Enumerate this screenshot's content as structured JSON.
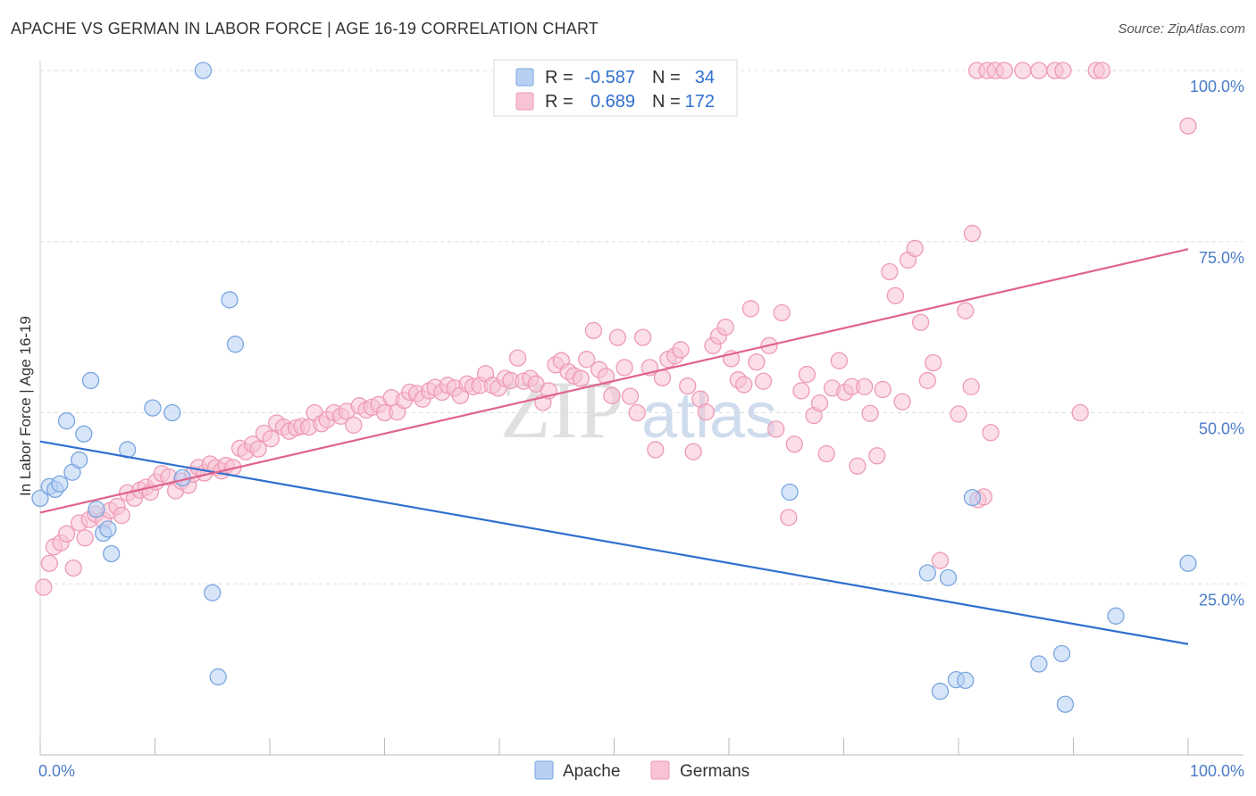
{
  "title": "APACHE VS GERMAN IN LABOR FORCE | AGE 16-19 CORRELATION CHART",
  "source": "Source: ZipAtlas.com",
  "watermark": {
    "zip": "ZIP",
    "atlas": "atlas"
  },
  "colors": {
    "apache_fill": "#b7d0f2",
    "apache_stroke": "#7aa6e0",
    "apache_line": "#2f6fcf",
    "german_fill": "#f8c3d4",
    "german_stroke": "#ee9ab5",
    "german_line": "#e0628e",
    "label_blue": "#4a7cc9",
    "grid": "#dddddd"
  },
  "legend": {
    "apache": {
      "r_label": "R =",
      "r_value": "-0.587",
      "n_label": "N =",
      "n_value": "34"
    },
    "german": {
      "r_label": "R =",
      "r_value": "0.689",
      "n_label": "N =",
      "n_value": "172"
    }
  },
  "bottom_legend": [
    "Apache",
    "Germans"
  ],
  "chart_data": {
    "type": "scatter",
    "title": "APACHE VS GERMAN IN LABOR FORCE | AGE 16-19 CORRELATION CHART",
    "xlabel": "",
    "ylabel": "In Labor Force | Age 16-19",
    "xlim": [
      0,
      100
    ],
    "ylim": [
      0,
      100
    ],
    "x_tick_labels": [
      "0.0%",
      "100.0%"
    ],
    "y_ticks": [
      25,
      50,
      75,
      100
    ],
    "y_tick_labels": [
      "25.0%",
      "50.0%",
      "75.0%",
      "100.0%"
    ],
    "grid": true,
    "series": [
      {
        "name": "Apache",
        "r": -0.587,
        "n": 34,
        "trend": {
          "x": [
            0,
            100
          ],
          "y": [
            45.8,
            16.2
          ]
        },
        "points": [
          [
            0,
            37.5
          ],
          [
            0.8,
            39.2
          ],
          [
            1.3,
            38.8
          ],
          [
            1.7,
            39.6
          ],
          [
            2.3,
            48.8
          ],
          [
            2.8,
            41.3
          ],
          [
            3.4,
            43.1
          ],
          [
            3.8,
            46.9
          ],
          [
            4.4,
            54.7
          ],
          [
            4.9,
            35.9
          ],
          [
            5.5,
            32.4
          ],
          [
            5.9,
            33.0
          ],
          [
            6.2,
            29.4
          ],
          [
            7.6,
            44.6
          ],
          [
            9.8,
            50.7
          ],
          [
            11.5,
            50.0
          ],
          [
            12.4,
            40.5
          ],
          [
            14.2,
            100
          ],
          [
            15.0,
            23.7
          ],
          [
            15.5,
            11.4
          ],
          [
            16.5,
            66.5
          ],
          [
            17.0,
            60.0
          ],
          [
            65.3,
            38.4
          ],
          [
            77.3,
            26.6
          ],
          [
            78.4,
            9.3
          ],
          [
            79.1,
            25.9
          ],
          [
            79.8,
            11.0
          ],
          [
            80.6,
            10.9
          ],
          [
            81.2,
            37.6
          ],
          [
            87.0,
            13.3
          ],
          [
            89.0,
            14.8
          ],
          [
            89.3,
            7.4
          ],
          [
            93.7,
            20.3
          ],
          [
            100.0,
            28.0
          ]
        ]
      },
      {
        "name": "Germans",
        "r": 0.689,
        "n": 172,
        "trend": {
          "x": [
            0,
            100
          ],
          "y": [
            35.4,
            73.9
          ]
        },
        "points": [
          [
            0.3,
            24.5
          ],
          [
            0.8,
            28.0
          ],
          [
            1.2,
            30.4
          ],
          [
            1.8,
            31.0
          ],
          [
            2.3,
            32.3
          ],
          [
            2.9,
            27.3
          ],
          [
            3.4,
            33.9
          ],
          [
            3.9,
            31.7
          ],
          [
            4.3,
            34.4
          ],
          [
            4.8,
            35.2
          ],
          [
            5.5,
            34.3
          ],
          [
            6.1,
            35.7
          ],
          [
            6.7,
            36.3
          ],
          [
            7.1,
            35.0
          ],
          [
            7.6,
            38.3
          ],
          [
            8.2,
            37.5
          ],
          [
            8.7,
            38.7
          ],
          [
            9.2,
            39.1
          ],
          [
            9.6,
            38.4
          ],
          [
            10.1,
            39.9
          ],
          [
            10.6,
            41.1
          ],
          [
            11.2,
            40.6
          ],
          [
            11.8,
            38.6
          ],
          [
            12.3,
            40.0
          ],
          [
            12.9,
            39.4
          ],
          [
            13.3,
            41.0
          ],
          [
            13.8,
            42.0
          ],
          [
            14.3,
            41.2
          ],
          [
            14.8,
            42.5
          ],
          [
            15.3,
            42.0
          ],
          [
            15.8,
            41.5
          ],
          [
            16.2,
            42.3
          ],
          [
            16.8,
            42.0
          ],
          [
            17.4,
            44.8
          ],
          [
            17.9,
            44.3
          ],
          [
            18.5,
            45.4
          ],
          [
            19.0,
            44.7
          ],
          [
            19.5,
            47.0
          ],
          [
            20.1,
            46.2
          ],
          [
            20.6,
            48.5
          ],
          [
            21.2,
            47.9
          ],
          [
            21.7,
            47.3
          ],
          [
            22.3,
            47.8
          ],
          [
            22.8,
            48.0
          ],
          [
            23.4,
            47.9
          ],
          [
            23.9,
            50.0
          ],
          [
            24.5,
            48.4
          ],
          [
            25.0,
            49.0
          ],
          [
            25.6,
            50.0
          ],
          [
            26.2,
            49.5
          ],
          [
            26.7,
            50.2
          ],
          [
            27.3,
            48.2
          ],
          [
            27.8,
            51.0
          ],
          [
            28.4,
            50.4
          ],
          [
            28.9,
            50.8
          ],
          [
            29.5,
            51.2
          ],
          [
            30.0,
            50.0
          ],
          [
            30.6,
            52.2
          ],
          [
            31.1,
            50.1
          ],
          [
            31.7,
            51.8
          ],
          [
            32.2,
            53.0
          ],
          [
            32.8,
            52.8
          ],
          [
            33.3,
            52.0
          ],
          [
            33.9,
            53.2
          ],
          [
            34.4,
            53.7
          ],
          [
            35.0,
            53.0
          ],
          [
            35.5,
            54.0
          ],
          [
            36.1,
            53.6
          ],
          [
            36.6,
            52.5
          ],
          [
            37.2,
            54.2
          ],
          [
            37.7,
            53.8
          ],
          [
            38.3,
            54.0
          ],
          [
            38.8,
            55.7
          ],
          [
            39.4,
            54.0
          ],
          [
            39.9,
            53.6
          ],
          [
            40.5,
            55.0
          ],
          [
            41.0,
            54.7
          ],
          [
            41.6,
            58.0
          ],
          [
            42.1,
            54.6
          ],
          [
            42.7,
            55.0
          ],
          [
            43.2,
            54.2
          ],
          [
            43.8,
            51.5
          ],
          [
            44.3,
            53.2
          ],
          [
            44.9,
            57.0
          ],
          [
            45.4,
            57.6
          ],
          [
            46.0,
            56.0
          ],
          [
            46.5,
            55.4
          ],
          [
            47.1,
            55.0
          ],
          [
            47.6,
            57.8
          ],
          [
            48.2,
            62.0
          ],
          [
            48.7,
            56.3
          ],
          [
            49.3,
            55.3
          ],
          [
            49.8,
            52.5
          ],
          [
            50.3,
            61.0
          ],
          [
            50.9,
            56.6
          ],
          [
            51.4,
            52.4
          ],
          [
            52.0,
            50.0
          ],
          [
            52.5,
            61.0
          ],
          [
            53.1,
            56.6
          ],
          [
            53.6,
            44.6
          ],
          [
            54.2,
            55.1
          ],
          [
            54.7,
            57.8
          ],
          [
            55.3,
            58.3
          ],
          [
            55.8,
            59.2
          ],
          [
            56.4,
            53.9
          ],
          [
            56.9,
            44.3
          ],
          [
            57.5,
            52.0
          ],
          [
            58.0,
            50.1
          ],
          [
            58.6,
            59.8
          ],
          [
            59.1,
            61.2
          ],
          [
            59.7,
            62.5
          ],
          [
            60.2,
            57.9
          ],
          [
            60.8,
            54.8
          ],
          [
            61.3,
            54.1
          ],
          [
            61.9,
            65.2
          ],
          [
            62.4,
            57.4
          ],
          [
            63.0,
            54.6
          ],
          [
            63.5,
            59.8
          ],
          [
            64.1,
            47.6
          ],
          [
            64.6,
            64.6
          ],
          [
            65.2,
            34.7
          ],
          [
            65.7,
            45.4
          ],
          [
            66.3,
            53.2
          ],
          [
            66.8,
            55.6
          ],
          [
            67.4,
            49.6
          ],
          [
            67.9,
            51.4
          ],
          [
            68.5,
            44.0
          ],
          [
            69.0,
            53.6
          ],
          [
            69.6,
            57.6
          ],
          [
            70.1,
            53.0
          ],
          [
            70.7,
            53.8
          ],
          [
            71.2,
            42.2
          ],
          [
            71.8,
            53.8
          ],
          [
            72.3,
            49.9
          ],
          [
            72.9,
            43.7
          ],
          [
            73.4,
            53.4
          ],
          [
            74.0,
            70.6
          ],
          [
            74.5,
            67.1
          ],
          [
            75.1,
            51.6
          ],
          [
            75.6,
            72.3
          ],
          [
            76.2,
            74.0
          ],
          [
            76.7,
            63.2
          ],
          [
            77.3,
            54.7
          ],
          [
            77.8,
            57.3
          ],
          [
            78.4,
            28.4
          ],
          [
            80.0,
            49.8
          ],
          [
            80.6,
            64.9
          ],
          [
            81.1,
            53.8
          ],
          [
            81.7,
            37.3
          ],
          [
            82.2,
            37.7
          ],
          [
            82.8,
            47.1
          ],
          [
            81.2,
            76.2
          ],
          [
            81.6,
            100
          ],
          [
            82.5,
            100
          ],
          [
            83.2,
            100
          ],
          [
            84.0,
            100
          ],
          [
            85.6,
            100
          ],
          [
            87.0,
            100
          ],
          [
            88.4,
            100
          ],
          [
            89.1,
            100
          ],
          [
            92.0,
            100
          ],
          [
            92.5,
            100
          ],
          [
            90.6,
            50.0
          ],
          [
            100.0,
            91.9
          ]
        ]
      }
    ]
  }
}
